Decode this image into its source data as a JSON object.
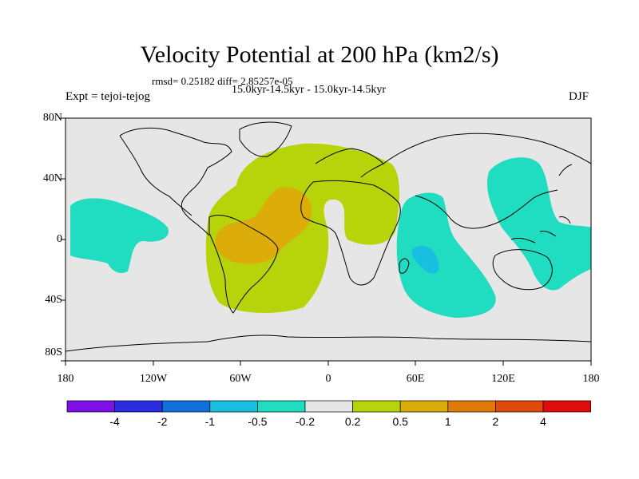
{
  "header": {
    "title": "Velocity Potential at 200 hPa (km2/s)",
    "stats": "rmsd= 0.25182 diff= 2.85257e-05",
    "period": "15.0kyr-14.5kyr - 15.0kyr-14.5kyr",
    "experiment": "Expt = tejoi-tejog",
    "season": "DJF"
  },
  "map": {
    "lat_labels": [
      "80N",
      "40N",
      "0",
      "40S",
      "80S"
    ],
    "lon_labels": [
      "180",
      "120W",
      "60W",
      "0",
      "60E",
      "120E",
      "180"
    ],
    "regions": [
      {
        "name": "atlantic-south-america-positive",
        "level": "0.2 to 0.5",
        "color": "#b7d40a"
      },
      {
        "name": "amazon-positive-core",
        "level": "0.5 to 1",
        "color": "#dcac0a"
      },
      {
        "name": "indian-ocean-negative",
        "level": "-0.5 to -0.2",
        "color": "#20dcc0"
      },
      {
        "name": "indian-ocean-negative-core",
        "level": "-1 to -0.5",
        "color": "#18bfe0"
      },
      {
        "name": "west-pacific-negative",
        "level": "-0.5 to -0.2",
        "color": "#20dcc0"
      },
      {
        "name": "east-pacific-negative",
        "level": "-0.5 to -0.2",
        "color": "#20dcc0"
      }
    ]
  },
  "colorbar": {
    "colors": [
      "#8010e8",
      "#2c2ce0",
      "#1070dc",
      "#18bfe0",
      "#20dcc0",
      "#e6e6e6",
      "#b7d40a",
      "#dcac0a",
      "#e27a0a",
      "#e04a0a",
      "#e00c0c"
    ],
    "labels": [
      "-4",
      "-2",
      "-1",
      "-0.5",
      "-0.2",
      "0.2",
      "0.5",
      "1",
      "2",
      "4"
    ]
  }
}
